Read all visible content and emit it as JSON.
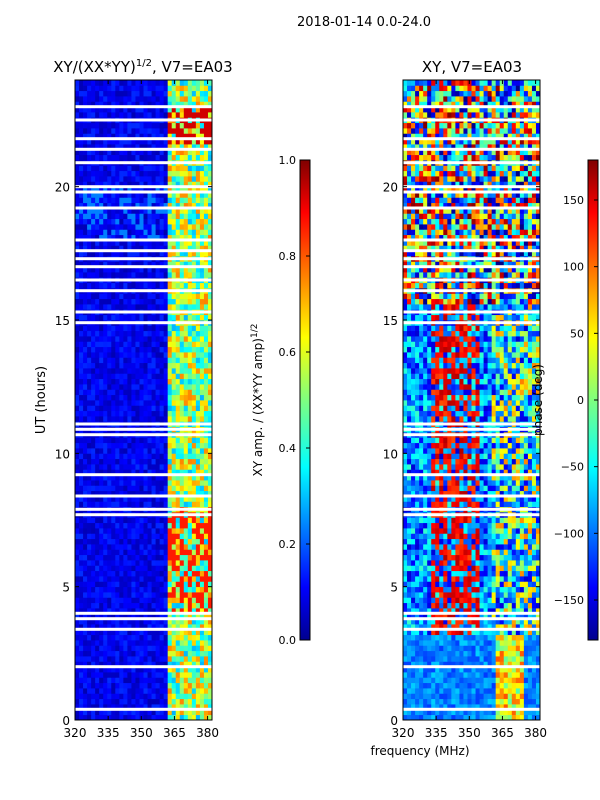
{
  "suptitle": "2018-01-14 0.0-24.0",
  "colors": {
    "background": "#ffffff",
    "gap": "#ffffff",
    "low": "#00008f",
    "high": "#800000"
  },
  "chart_data": [
    {
      "type": "heatmap",
      "title": "XY/(XX*YY)",
      "title_superscript": "1/2",
      "title_suffix": ", V7=EA03",
      "xlabel": "",
      "ylabel": "UT (hours)",
      "xlim": [
        320,
        382
      ],
      "ylim": [
        0,
        24
      ],
      "xticks": [
        320,
        335,
        350,
        365,
        380
      ],
      "yticks": [
        0,
        5,
        10,
        15,
        20
      ],
      "colormap": "jet",
      "colorbar": {
        "label": "XY amp. / (XX*YY amp)",
        "label_superscript": "1/2",
        "range": [
          0.0,
          1.0
        ],
        "ticks": [
          "0.0",
          "0.2",
          "0.4",
          "0.6",
          "0.8",
          "1.0"
        ]
      },
      "bright_band_mhz": [
        362,
        382
      ],
      "data_gaps_hours": [
        0.4,
        2.0,
        3.4,
        3.8,
        4.0,
        7.7,
        7.9,
        8.4,
        9.2,
        10.7,
        10.9,
        11.1,
        14.9,
        15.3,
        16.1,
        16.5,
        17.0,
        17.3,
        17.6,
        18.0,
        19.2,
        19.8,
        20.0,
        20.9,
        21.4,
        21.8,
        22.5,
        23.0
      ]
    },
    {
      "type": "heatmap",
      "title": "XY, V7=EA03",
      "xlabel": "frequency (MHz)",
      "ylabel": "",
      "xlim": [
        320,
        382
      ],
      "ylim": [
        0,
        24
      ],
      "xticks": [
        320,
        335,
        350,
        365,
        380
      ],
      "yticks": [
        0,
        5,
        10,
        15,
        20
      ],
      "colormap": "jet",
      "colorbar": {
        "label": "phase (deg)",
        "range": [
          -180,
          180
        ],
        "ticks": [
          "−150",
          "−100",
          "−50",
          "0",
          "50",
          "100",
          "150"
        ]
      },
      "data_gaps_hours": [
        0.4,
        2.0,
        3.4,
        3.8,
        4.0,
        7.7,
        7.9,
        8.4,
        9.2,
        10.7,
        10.9,
        11.1,
        14.9,
        15.3,
        16.1,
        16.5,
        17.0,
        17.3,
        17.6,
        18.0,
        19.2,
        19.8,
        20.0,
        20.9,
        21.4,
        21.8,
        22.5,
        23.0
      ]
    }
  ]
}
